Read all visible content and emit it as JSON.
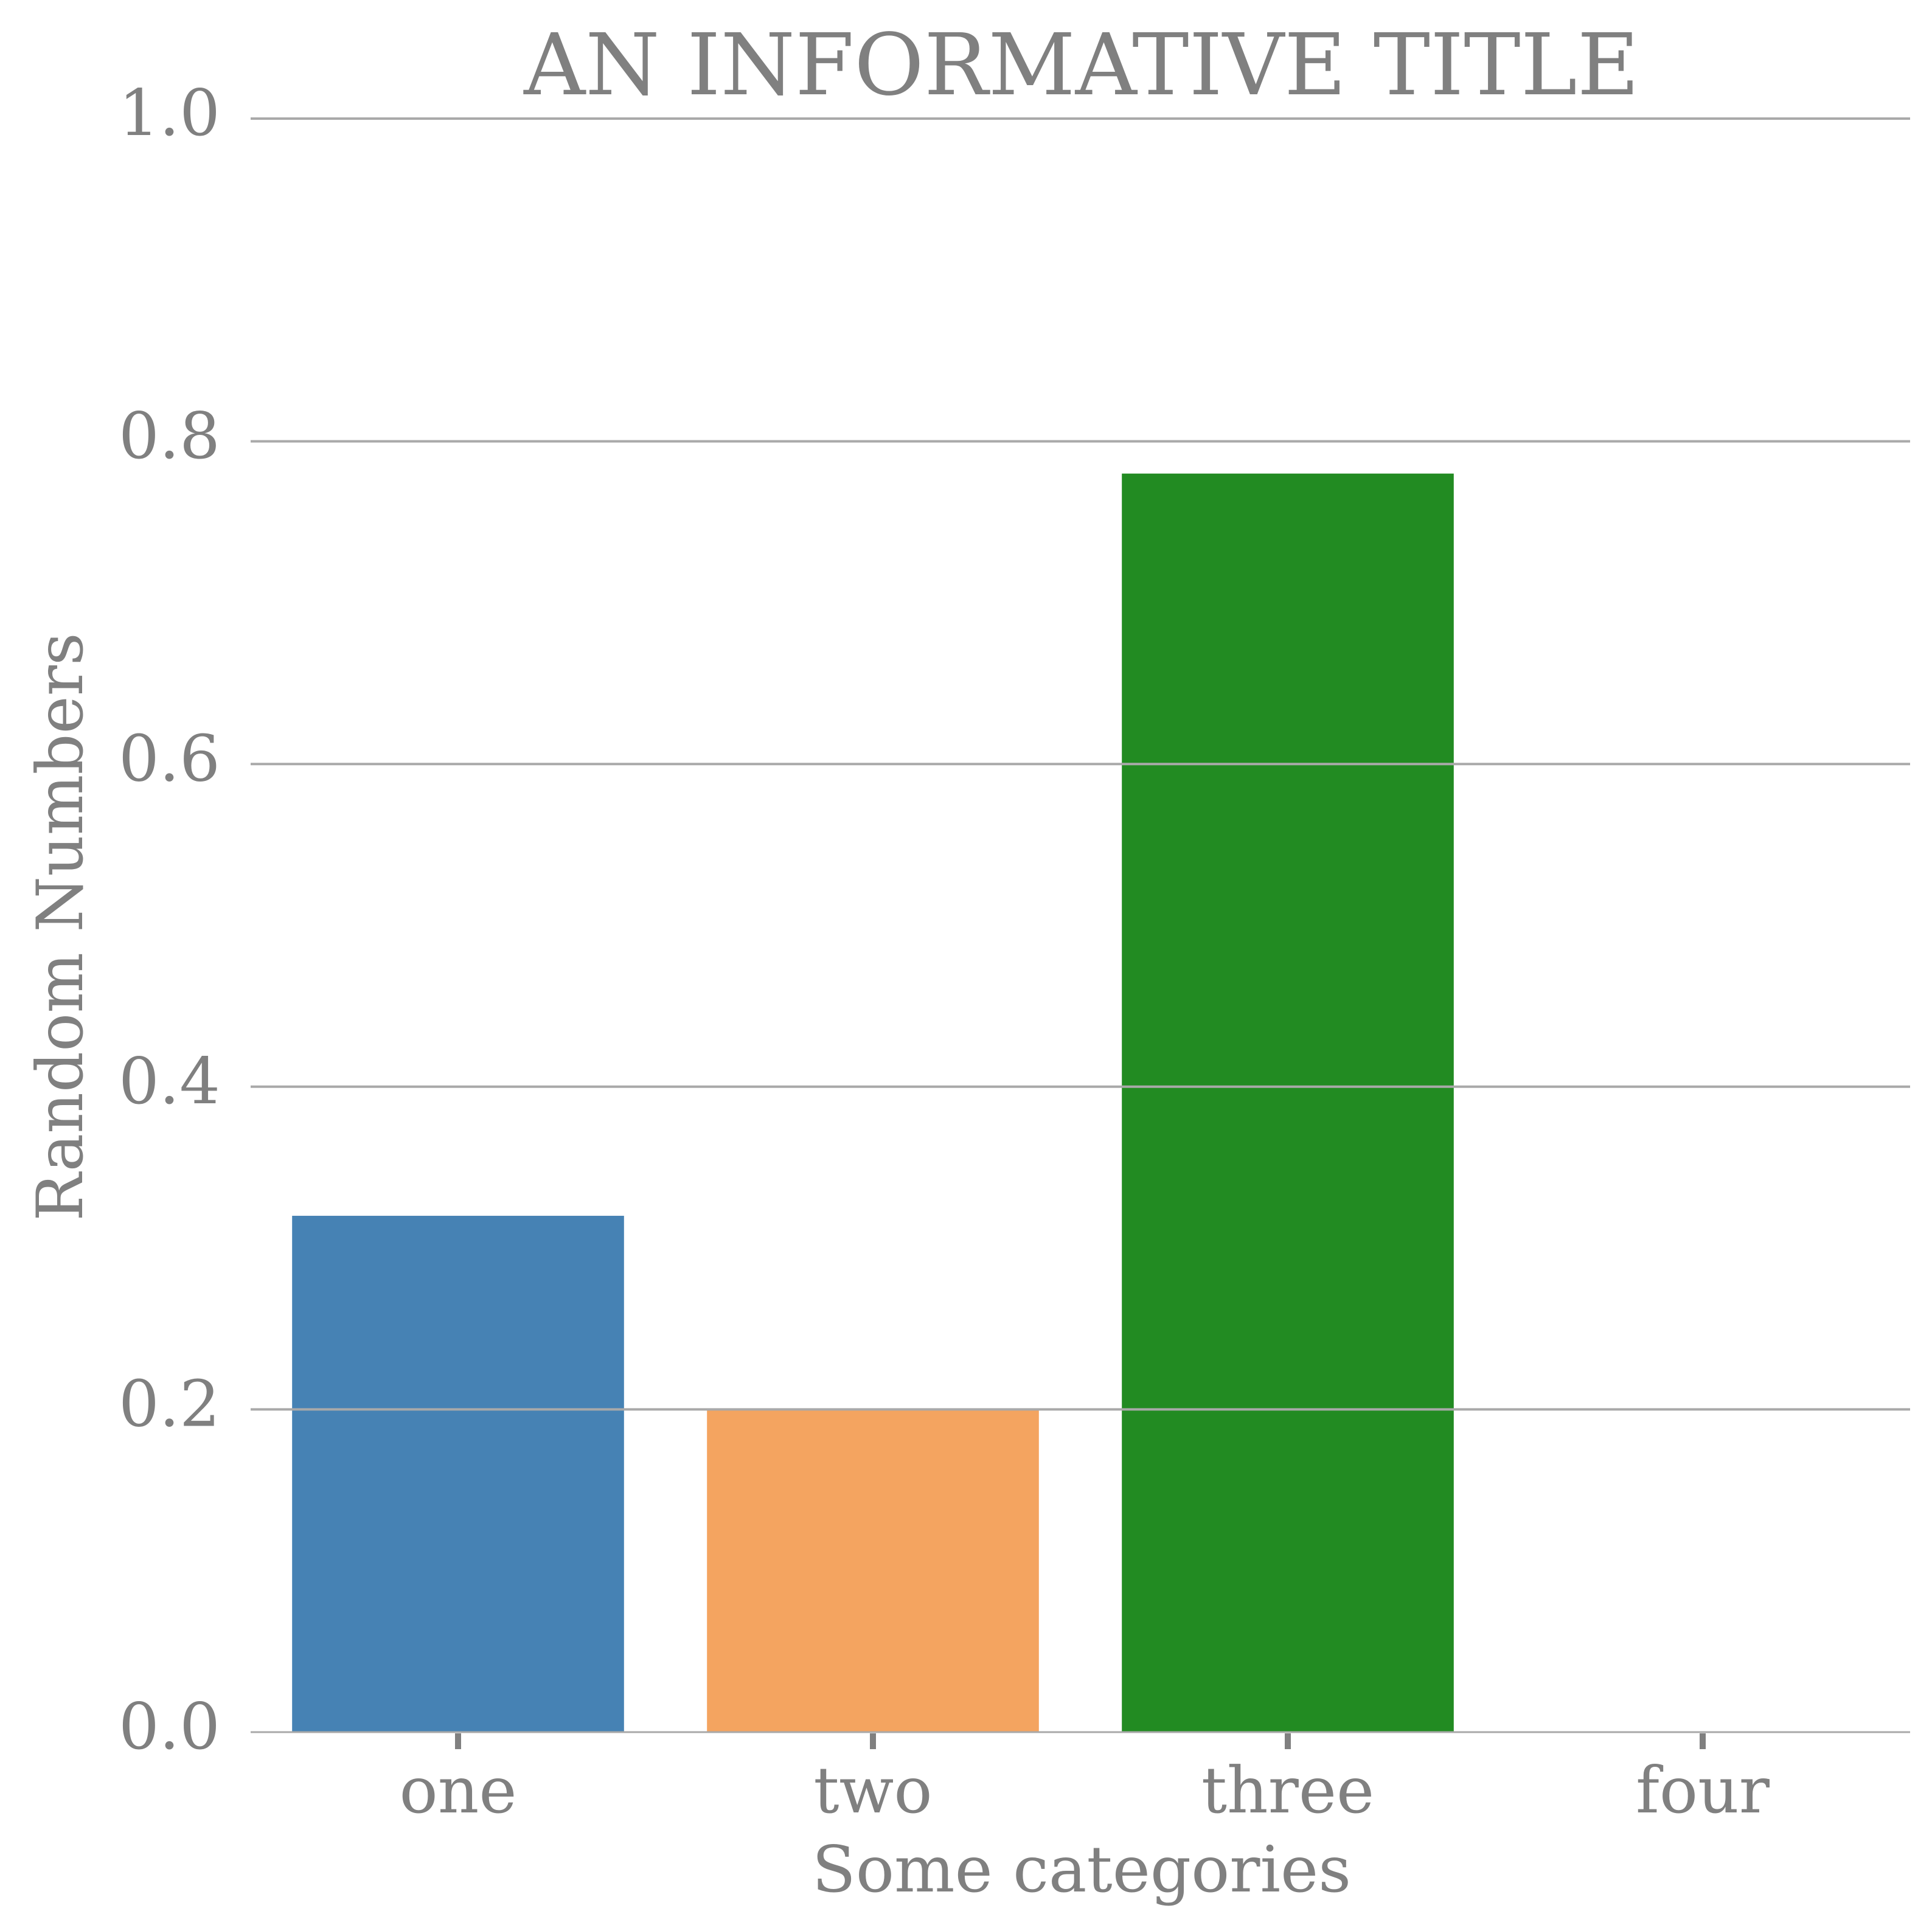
{
  "chart_data": {
    "type": "bar",
    "title": "AN INFORMATIVE TITLE",
    "xlabel": "Some categories",
    "ylabel": "Random Numbers",
    "categories": [
      "one",
      "two",
      "three",
      "four"
    ],
    "values": [
      0.32,
      0.2,
      0.78,
      0.0
    ],
    "colors": [
      "#4682b4",
      "#f4a460",
      "#228b22",
      "#ffffff"
    ],
    "ylim": [
      0,
      1.0
    ],
    "yticks": [
      "0.0",
      "0.2",
      "0.4",
      "0.6",
      "0.8",
      "1.0"
    ],
    "grid": true,
    "text_color": "#808080",
    "grid_color": "#a9a9a9"
  }
}
